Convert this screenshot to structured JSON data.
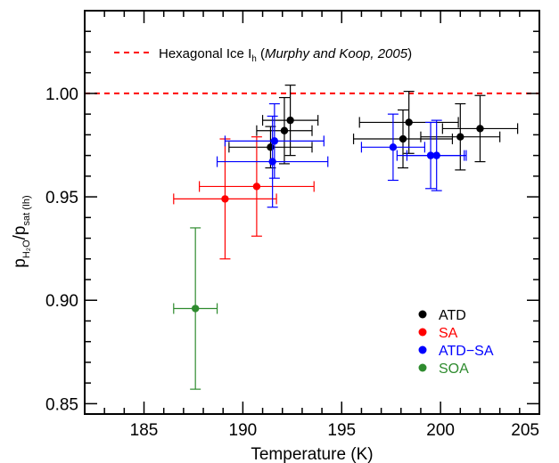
{
  "chart_data": {
    "type": "scatter",
    "xlabel": "Temperature (K)",
    "ylabel": {
      "base": "p",
      "sub1": "H₂O",
      "mid": "/p",
      "sub2": "sat (Ih)"
    },
    "xlim": [
      182,
      205
    ],
    "ylim": [
      0.845,
      1.04
    ],
    "x_ticks": [
      185,
      190,
      195,
      200,
      205
    ],
    "y_ticks": [
      0.85,
      0.9,
      0.95,
      1.0
    ],
    "x_tick_labels": [
      "185",
      "190",
      "195",
      "200",
      "205"
    ],
    "y_tick_labels": [
      "0.85",
      "0.90",
      "0.95",
      "1.00"
    ],
    "x_minor_step": 1,
    "y_minor_step": 0.01,
    "grid": false,
    "legend_position": "bottom-right",
    "reference_line": {
      "y": 1.0,
      "color": "#ff0000",
      "style": "dashed",
      "label_prefix": "Hexagonal Ice I",
      "label_sub": "h",
      "label_open": " (",
      "label_italic": "Murphy and Koop, 2005",
      "label_close": ")"
    },
    "series": [
      {
        "name": "ATD",
        "color": "#000000",
        "points": [
          {
            "x": 191.4,
            "y": 0.974,
            "xerr": 2.1,
            "yerr_low": 0.01,
            "yerr_high": 0.01
          },
          {
            "x": 192.1,
            "y": 0.982,
            "xerr": 1.4,
            "yerr_low": 0.016,
            "yerr_high": 0.016
          },
          {
            "x": 192.4,
            "y": 0.987,
            "xerr": 1.4,
            "yerr_low": 0.017,
            "yerr_high": 0.017
          },
          {
            "x": 198.1,
            "y": 0.978,
            "xerr": 2.5,
            "yerr_low": 0.014,
            "yerr_high": 0.014
          },
          {
            "x": 198.4,
            "y": 0.986,
            "xerr": 2.5,
            "yerr_low": 0.015,
            "yerr_high": 0.015
          },
          {
            "x": 201.0,
            "y": 0.979,
            "xerr": 2.0,
            "yerr_low": 0.016,
            "yerr_high": 0.016
          },
          {
            "x": 202.0,
            "y": 0.983,
            "xerr": 1.9,
            "yerr_low": 0.016,
            "yerr_high": 0.016
          }
        ]
      },
      {
        "name": "SA",
        "color": "#ff0000",
        "points": [
          {
            "x": 189.1,
            "y": 0.949,
            "xerr": 2.6,
            "yerr_low": 0.029,
            "yerr_high": 0.029
          },
          {
            "x": 190.7,
            "y": 0.955,
            "xerr": 2.9,
            "yerr_low": 0.024,
            "yerr_high": 0.024
          }
        ]
      },
      {
        "name": "ATD−SA",
        "color": "#0000ff",
        "points": [
          {
            "x": 191.5,
            "y": 0.967,
            "xerr": 2.8,
            "yerr_low": 0.022,
            "yerr_high": 0.022
          },
          {
            "x": 191.6,
            "y": 0.977,
            "xerr": 2.5,
            "yerr_low": 0.018,
            "yerr_high": 0.018
          },
          {
            "x": 197.6,
            "y": 0.974,
            "xerr": 1.6,
            "yerr_low": 0.016,
            "yerr_high": 0.016
          },
          {
            "x": 199.5,
            "y": 0.97,
            "xerr": 1.7,
            "yerr_low": 0.016,
            "yerr_high": 0.016
          },
          {
            "x": 199.8,
            "y": 0.97,
            "xerr": 1.5,
            "yerr_low": 0.017,
            "yerr_high": 0.017
          }
        ]
      },
      {
        "name": "SOA",
        "color": "#2e8b2e",
        "points": [
          {
            "x": 187.6,
            "y": 0.896,
            "xerr": 1.1,
            "yerr_low": 0.039,
            "yerr_high": 0.039
          }
        ]
      }
    ]
  }
}
